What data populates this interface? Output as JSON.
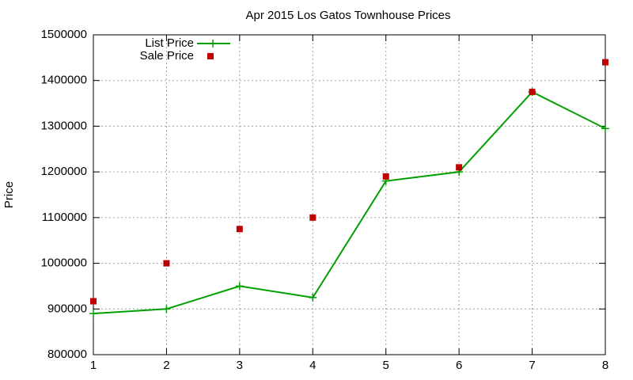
{
  "chart_data": {
    "type": "line",
    "title": "Apr 2015 Los Gatos Townhouse Prices",
    "y_label": "Price",
    "x": [
      1,
      2,
      3,
      4,
      5,
      6,
      7,
      8
    ],
    "series": [
      {
        "name": "List Price",
        "color": "#00a000",
        "style": "linespoints",
        "values": [
          890000,
          900000,
          950000,
          925000,
          1180000,
          1200000,
          1375000,
          1295000
        ]
      },
      {
        "name": "Sale Price",
        "color": "#c00000",
        "style": "points",
        "values": [
          917000,
          1000000,
          1075000,
          1100000,
          1190000,
          1210000,
          1375000,
          1440000
        ]
      }
    ],
    "xlim": [
      1,
      8
    ],
    "xticks": [
      1,
      2,
      3,
      4,
      5,
      6,
      7,
      8
    ],
    "ylim": [
      800000,
      1500000
    ],
    "yticks": [
      800000,
      900000,
      1000000,
      1100000,
      1200000,
      1300000,
      1400000,
      1500000
    ],
    "grid": true,
    "legend": "top-left"
  }
}
